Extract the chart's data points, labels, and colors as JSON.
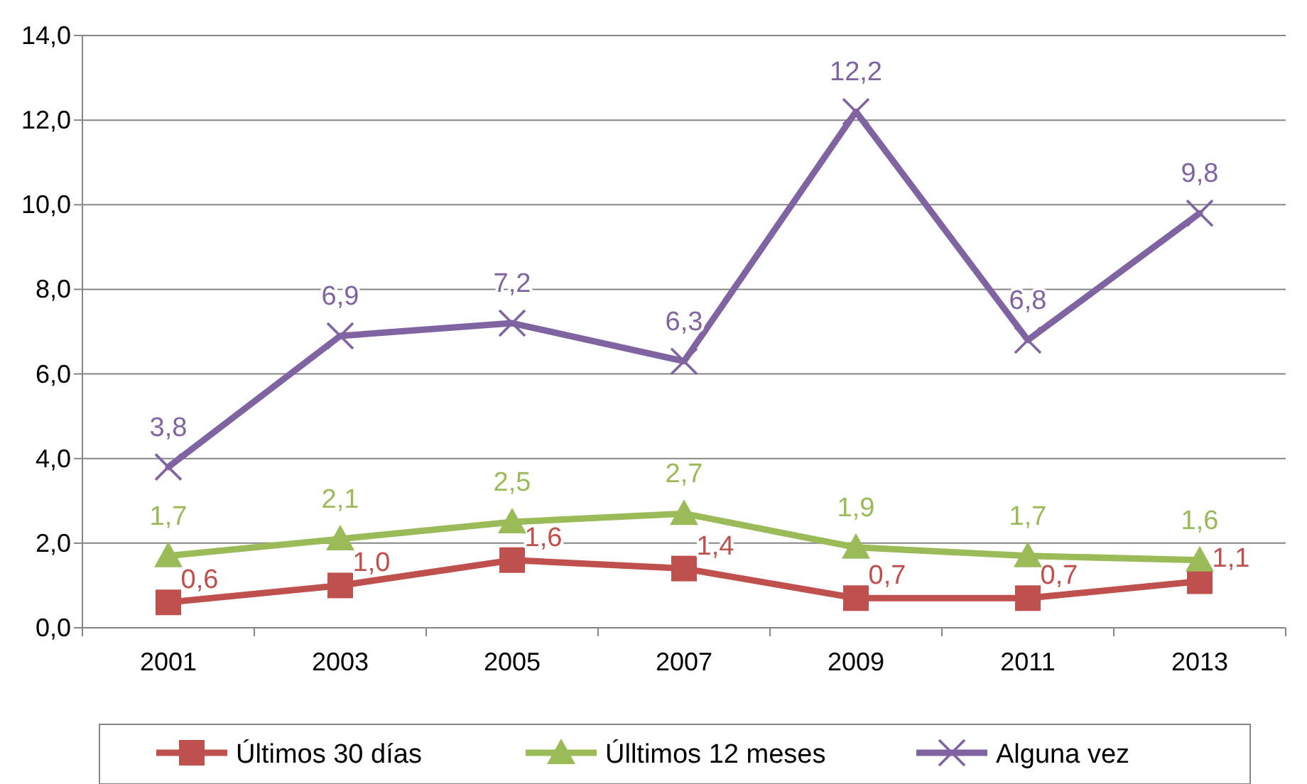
{
  "chart_data": {
    "type": "line",
    "categories": [
      "2001",
      "2003",
      "2005",
      "2007",
      "2009",
      "2011",
      "2013"
    ],
    "ylim": [
      0,
      14
    ],
    "yticks": [
      {
        "value": 0,
        "label": "0,0"
      },
      {
        "value": 2,
        "label": "2,0"
      },
      {
        "value": 4,
        "label": "4,0"
      },
      {
        "value": 6,
        "label": "6,0"
      },
      {
        "value": 8,
        "label": "8,0"
      },
      {
        "value": 10,
        "label": "10,0"
      },
      {
        "value": 12,
        "label": "12,0"
      },
      {
        "value": 14,
        "label": "14,0"
      }
    ],
    "grid": "y",
    "legend": "bottom",
    "series": [
      {
        "name": "Últimos 30 días",
        "color": "#c0504d",
        "marker": "square",
        "values": [
          0.6,
          1.0,
          1.6,
          1.4,
          0.7,
          0.7,
          1.1
        ],
        "value_labels": [
          "0,6",
          "1,0",
          "1,6",
          "1,4",
          "0,7",
          "0,7",
          "1,1"
        ]
      },
      {
        "name": "Úlltimos 12 meses",
        "color": "#9bbb59",
        "marker": "triangle",
        "values": [
          1.7,
          2.1,
          2.5,
          2.7,
          1.9,
          1.7,
          1.6
        ],
        "value_labels": [
          "1,7",
          "2,1",
          "2,5",
          "2,7",
          "1,9",
          "1,7",
          "1,6"
        ]
      },
      {
        "name": "Alguna vez",
        "color": "#8064a2",
        "marker": "cross",
        "values": [
          3.8,
          6.9,
          7.2,
          6.3,
          12.2,
          6.8,
          9.8
        ],
        "value_labels": [
          "3,8",
          "6,9",
          "7,2",
          "6,3",
          "12,2",
          "6,8",
          "9,8"
        ]
      }
    ]
  }
}
